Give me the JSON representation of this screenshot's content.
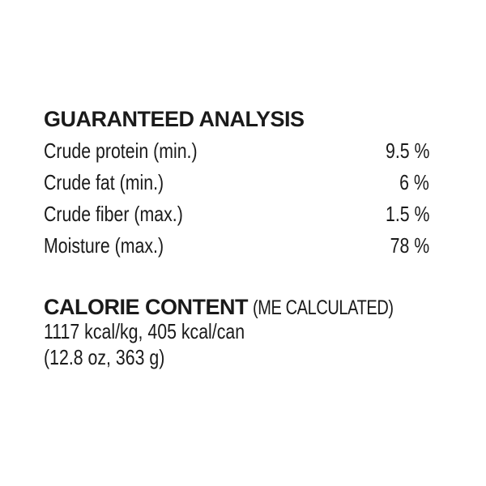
{
  "guaranteed_analysis": {
    "title": "GUARANTEED ANALYSIS",
    "rows": [
      {
        "label": "Crude protein (min.)",
        "value": "9.5 %"
      },
      {
        "label": "Crude fat (min.)",
        "value": "6 %"
      },
      {
        "label": "Crude fiber (max.)",
        "value": "1.5 %"
      },
      {
        "label": "Moisture (max.)",
        "value": "78 %"
      }
    ]
  },
  "calorie_content": {
    "title": "CALORIE CONTENT",
    "subtitle": "(ME CALCULATED)",
    "line1": "1117 kcal/kg, 405 kcal/can",
    "line2": "(12.8 oz, 363 g)"
  }
}
